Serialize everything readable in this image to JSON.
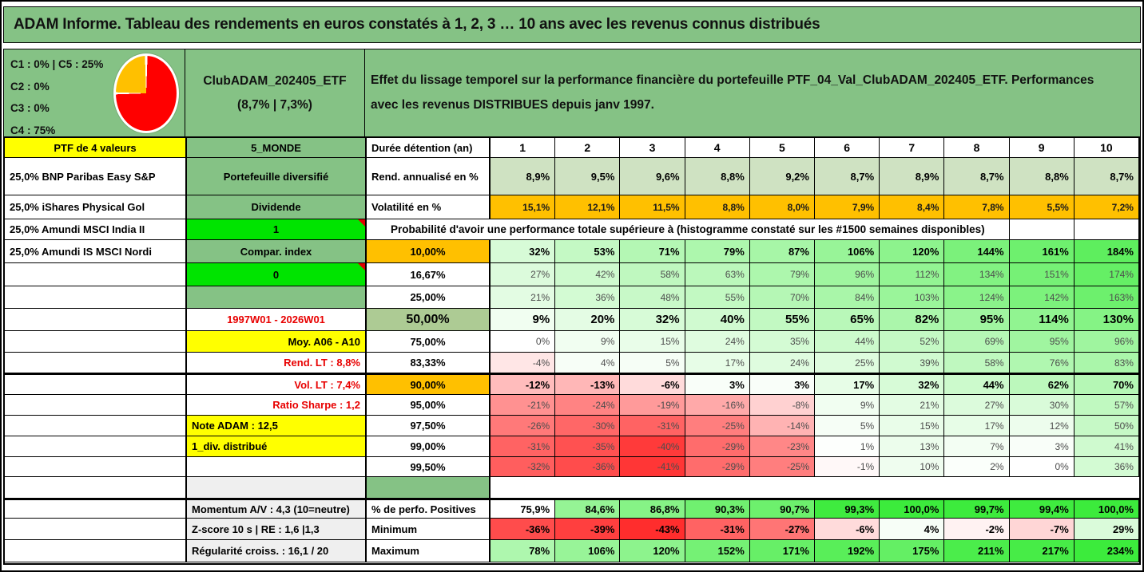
{
  "title": "ADAM Informe. Tableau des rendements en euros constatés à 1, 2, 3 … 10 ans avec les revenus connus distribués",
  "colors": {
    "band_green": "#85c285",
    "bright_green": "#00e400",
    "yellow": "#ffff00",
    "orange": "#ffc000",
    "sage": "#adcb94",
    "rend_fill": "#cfe2c2",
    "gray_fill": "#efefef",
    "red_text": "#e80000",
    "heat_positive_max": "#3ceb3c",
    "heat_negative_max": "#ff2d2d",
    "heat_scale_min": -43,
    "heat_scale_max": 234,
    "perfo_scale_min": 75.9,
    "perfo_scale_max": 100
  },
  "header": {
    "allocations": [
      "C1 : 0% | C5 : 25%",
      "C2 : 0%",
      "C3 : 0%",
      "C4 : 75%"
    ],
    "pie": {
      "slices": [
        {
          "name": "C4",
          "value": 75,
          "color": "#ff0000"
        },
        {
          "name": "C5",
          "value": 25,
          "color": "#ffc000"
        }
      ]
    },
    "portfolio_name": "ClubADAM_202405_ETF",
    "portfolio_stats": "(8,7% | 7,3%)",
    "description": "Effet du lissage temporel sur la performance financière du portefeuille PTF_04_Val_ClubADAM_202405_ETF. Performances avec les revenus DISTRIBUES depuis janv 1997."
  },
  "table": {
    "years": [
      "1",
      "2",
      "3",
      "4",
      "5",
      "6",
      "7",
      "8",
      "9",
      "10"
    ],
    "prob_header": "Probabilité d'avoir une performance totale supérieure à (histogramme constaté sur les #1500 semaines disponibles)",
    "rows": [
      {
        "c1": {
          "t": "PTF de 4 valeurs",
          "v": "yellow",
          "a": "c"
        },
        "c2": {
          "t": "5_MONDE",
          "v": "green"
        },
        "c3": {
          "t": "Durée détention (an)",
          "a": "l"
        },
        "d": {
          "kind": "years"
        }
      },
      {
        "c1": {
          "t": "25,0% BNP Paribas Easy S&P"
        },
        "c2": {
          "t": "Portefeuille diversifié",
          "v": "green"
        },
        "c3": {
          "t": "Rend. annualisé en %",
          "a": "l"
        },
        "d": {
          "kind": "fill",
          "fill": "rend",
          "disp": [
            "8,9%",
            "9,5%",
            "9,6%",
            "8,8%",
            "9,2%",
            "8,7%",
            "8,9%",
            "8,7%",
            "8,8%",
            "8,7%"
          ],
          "bold": true
        }
      },
      {
        "c1": {
          "t": "25,0% iShares Physical Gol"
        },
        "c2": {
          "t": "Dividende",
          "v": "green"
        },
        "c3": {
          "t": "Volatilité en %",
          "a": "l"
        },
        "d": {
          "kind": "fill",
          "fill": "orange",
          "disp": [
            "15,1%",
            "12,1%",
            "11,5%",
            "8,8%",
            "8,0%",
            "7,9%",
            "8,4%",
            "7,8%",
            "5,5%",
            "7,2%"
          ],
          "semi": true
        }
      },
      {
        "c1": {
          "t": "25,0% Amundi MSCI India II"
        },
        "c2": {
          "t": "1",
          "v": "bright",
          "note": true
        },
        "c3": {
          "span": 9
        },
        "d": {
          "kind": "tail"
        }
      },
      {
        "c1": {
          "t": "25,0% Amundi IS MSCI Nordi"
        },
        "c2": {
          "t": "Compar. index",
          "v": "green"
        },
        "c3": {
          "t": "10,00%",
          "v": "orange"
        },
        "d": {
          "kind": "heat",
          "vals": [
            32,
            53,
            71,
            79,
            87,
            106,
            120,
            144,
            161,
            184
          ],
          "bold": true
        }
      },
      {
        "c1": {
          "t": ""
        },
        "c2": {
          "t": "0",
          "v": "bright",
          "note": true
        },
        "c3": {
          "t": "16,67%"
        },
        "d": {
          "kind": "heat",
          "vals": [
            27,
            42,
            58,
            63,
            79,
            96,
            112,
            134,
            151,
            174
          ]
        }
      },
      {
        "c1": {
          "t": ""
        },
        "c2": {
          "t": "",
          "v": "green"
        },
        "c3": {
          "t": "25,00%"
        },
        "d": {
          "kind": "heat",
          "vals": [
            21,
            36,
            48,
            55,
            70,
            84,
            103,
            124,
            142,
            163
          ]
        }
      },
      {
        "c1": {
          "t": ""
        },
        "c2": {
          "t": "1997W01 - 2026W01",
          "v": "redtext"
        },
        "c3": {
          "t": "50,00%",
          "v": "sage",
          "big": true
        },
        "d": {
          "kind": "heat",
          "vals": [
            9,
            20,
            32,
            40,
            55,
            65,
            82,
            95,
            114,
            130
          ],
          "bold": true,
          "big": true
        }
      },
      {
        "c1": {
          "t": ""
        },
        "c2": {
          "t": "Moy. A06 - A10",
          "v": "yellow",
          "a": "r"
        },
        "c3": {
          "t": "75,00%"
        },
        "d": {
          "kind": "heat",
          "vals": [
            0,
            9,
            15,
            24,
            35,
            44,
            52,
            69,
            95,
            96
          ]
        }
      },
      {
        "c1": {
          "t": ""
        },
        "c2": {
          "t": "Rend. LT : 8,8%",
          "v": "redtext",
          "a": "r"
        },
        "c3": {
          "t": "83,33%"
        },
        "d": {
          "kind": "heat",
          "vals": [
            -4,
            4,
            5,
            17,
            24,
            25,
            39,
            58,
            76,
            83
          ]
        }
      },
      {
        "c1": {
          "t": ""
        },
        "c2": {
          "t": "Vol. LT : 7,4%",
          "v": "redtext",
          "a": "r"
        },
        "c3": {
          "t": "90,00%",
          "v": "orange"
        },
        "d": {
          "kind": "heat",
          "vals": [
            -12,
            -13,
            -6,
            3,
            3,
            17,
            32,
            44,
            62,
            70
          ],
          "bold": true
        },
        "thick": true
      },
      {
        "c1": {
          "t": ""
        },
        "c2": {
          "t": "Ratio Sharpe : 1,2",
          "v": "redtext",
          "a": "r"
        },
        "c3": {
          "t": "95,00%"
        },
        "d": {
          "kind": "heat",
          "vals": [
            -21,
            -24,
            -19,
            -16,
            -8,
            9,
            21,
            27,
            30,
            57
          ]
        }
      },
      {
        "c1": {
          "t": ""
        },
        "c2": {
          "t": "Note ADAM : 12,5",
          "v": "yellow",
          "a": "l"
        },
        "c3": {
          "t": "97,50%"
        },
        "d": {
          "kind": "heat",
          "vals": [
            -26,
            -30,
            -31,
            -25,
            -14,
            5,
            15,
            17,
            12,
            50
          ]
        }
      },
      {
        "c1": {
          "t": ""
        },
        "c2": {
          "t": "1_div. distribué",
          "v": "yellow",
          "a": "l"
        },
        "c3": {
          "t": "99,00%"
        },
        "d": {
          "kind": "heat",
          "vals": [
            -31,
            -35,
            -40,
            -29,
            -23,
            1,
            13,
            7,
            3,
            41
          ]
        }
      },
      {
        "c1": {
          "t": ""
        },
        "c2": {
          "t": ""
        },
        "c3": {
          "t": "99,50%"
        },
        "d": {
          "kind": "heat",
          "vals": [
            -32,
            -36,
            -41,
            -29,
            -25,
            -1,
            10,
            2,
            0,
            36
          ]
        }
      },
      {
        "c1": {
          "t": ""
        },
        "c2": {
          "t": "",
          "v": "gray"
        },
        "c3": {
          "t": "",
          "v": "green"
        },
        "d": {
          "kind": "blank"
        }
      },
      {
        "c1": {
          "t": ""
        },
        "c2": {
          "t": "Momentum A/V : 4,3 (10=neutre)",
          "v": "gray",
          "a": "l"
        },
        "c3": {
          "t": "% de perfo. Positives",
          "a": "l"
        },
        "d": {
          "kind": "perfo",
          "vals": [
            75.9,
            84.6,
            86.8,
            90.3,
            90.7,
            99.3,
            100,
            99.7,
            99.4,
            100
          ],
          "disp": [
            "75,9%",
            "84,6%",
            "86,8%",
            "90,3%",
            "90,7%",
            "99,3%",
            "100,0%",
            "99,7%",
            "99,4%",
            "100,0%"
          ],
          "bold": true
        },
        "thick": true
      },
      {
        "c1": {
          "t": ""
        },
        "c2": {
          "t": "Z-score 10 s | RE : 1,6 |1,3",
          "v": "gray",
          "a": "l"
        },
        "c3": {
          "t": "Minimum",
          "a": "l"
        },
        "d": {
          "kind": "heat",
          "vals": [
            -36,
            -39,
            -43,
            -31,
            -27,
            -6,
            4,
            -2,
            -7,
            29
          ],
          "bold": true
        }
      },
      {
        "c1": {
          "t": ""
        },
        "c2": {
          "t": "Régularité croiss. : 16,1 / 20",
          "v": "gray",
          "a": "l"
        },
        "c3": {
          "t": "Maximum",
          "a": "l"
        },
        "d": {
          "kind": "heat",
          "vals": [
            78,
            106,
            120,
            152,
            171,
            192,
            175,
            211,
            217,
            234
          ],
          "bold": true
        }
      }
    ]
  }
}
